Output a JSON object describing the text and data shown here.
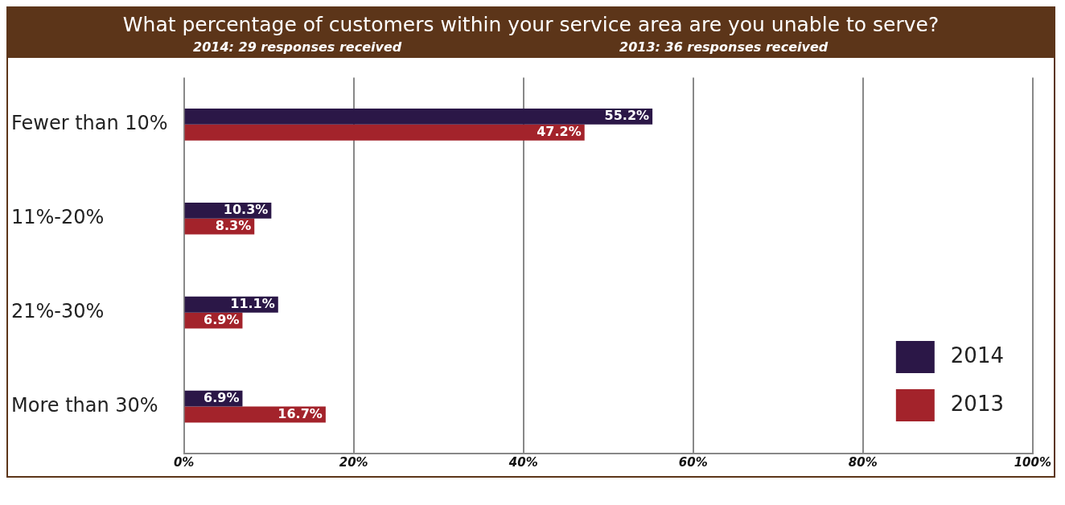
{
  "chart_data": {
    "type": "bar",
    "orientation": "horizontal",
    "title": "What percentage of customers within your service area are you unable to serve?",
    "annotations": [
      "2014: 29 responses received",
      "2013: 36 responses received"
    ],
    "categories": [
      "Fewer than 10%",
      "11%-20%",
      "21%-30%",
      "More than 30%"
    ],
    "series": [
      {
        "name": "2014",
        "color": "#2b1747",
        "values": [
          55.2,
          10.3,
          11.1,
          6.9
        ],
        "value_labels": [
          "55.2%",
          "10.3%",
          "11.1%",
          "6.9%"
        ]
      },
      {
        "name": "2013",
        "color": "#a3232b",
        "values": [
          47.2,
          8.3,
          6.9,
          16.7
        ],
        "value_labels": [
          "47.2%",
          "8.3%",
          "6.9%",
          "16.7%"
        ]
      }
    ],
    "xlim": [
      0,
      100
    ],
    "xticks": [
      {
        "value": 0,
        "label": "0%"
      },
      {
        "value": 20,
        "label": "20%"
      },
      {
        "value": 40,
        "label": "40%"
      },
      {
        "value": 60,
        "label": "60%"
      },
      {
        "value": 80,
        "label": "80%"
      },
      {
        "value": 100,
        "label": "100%"
      }
    ],
    "grid": "x",
    "legend": "bottom right"
  }
}
